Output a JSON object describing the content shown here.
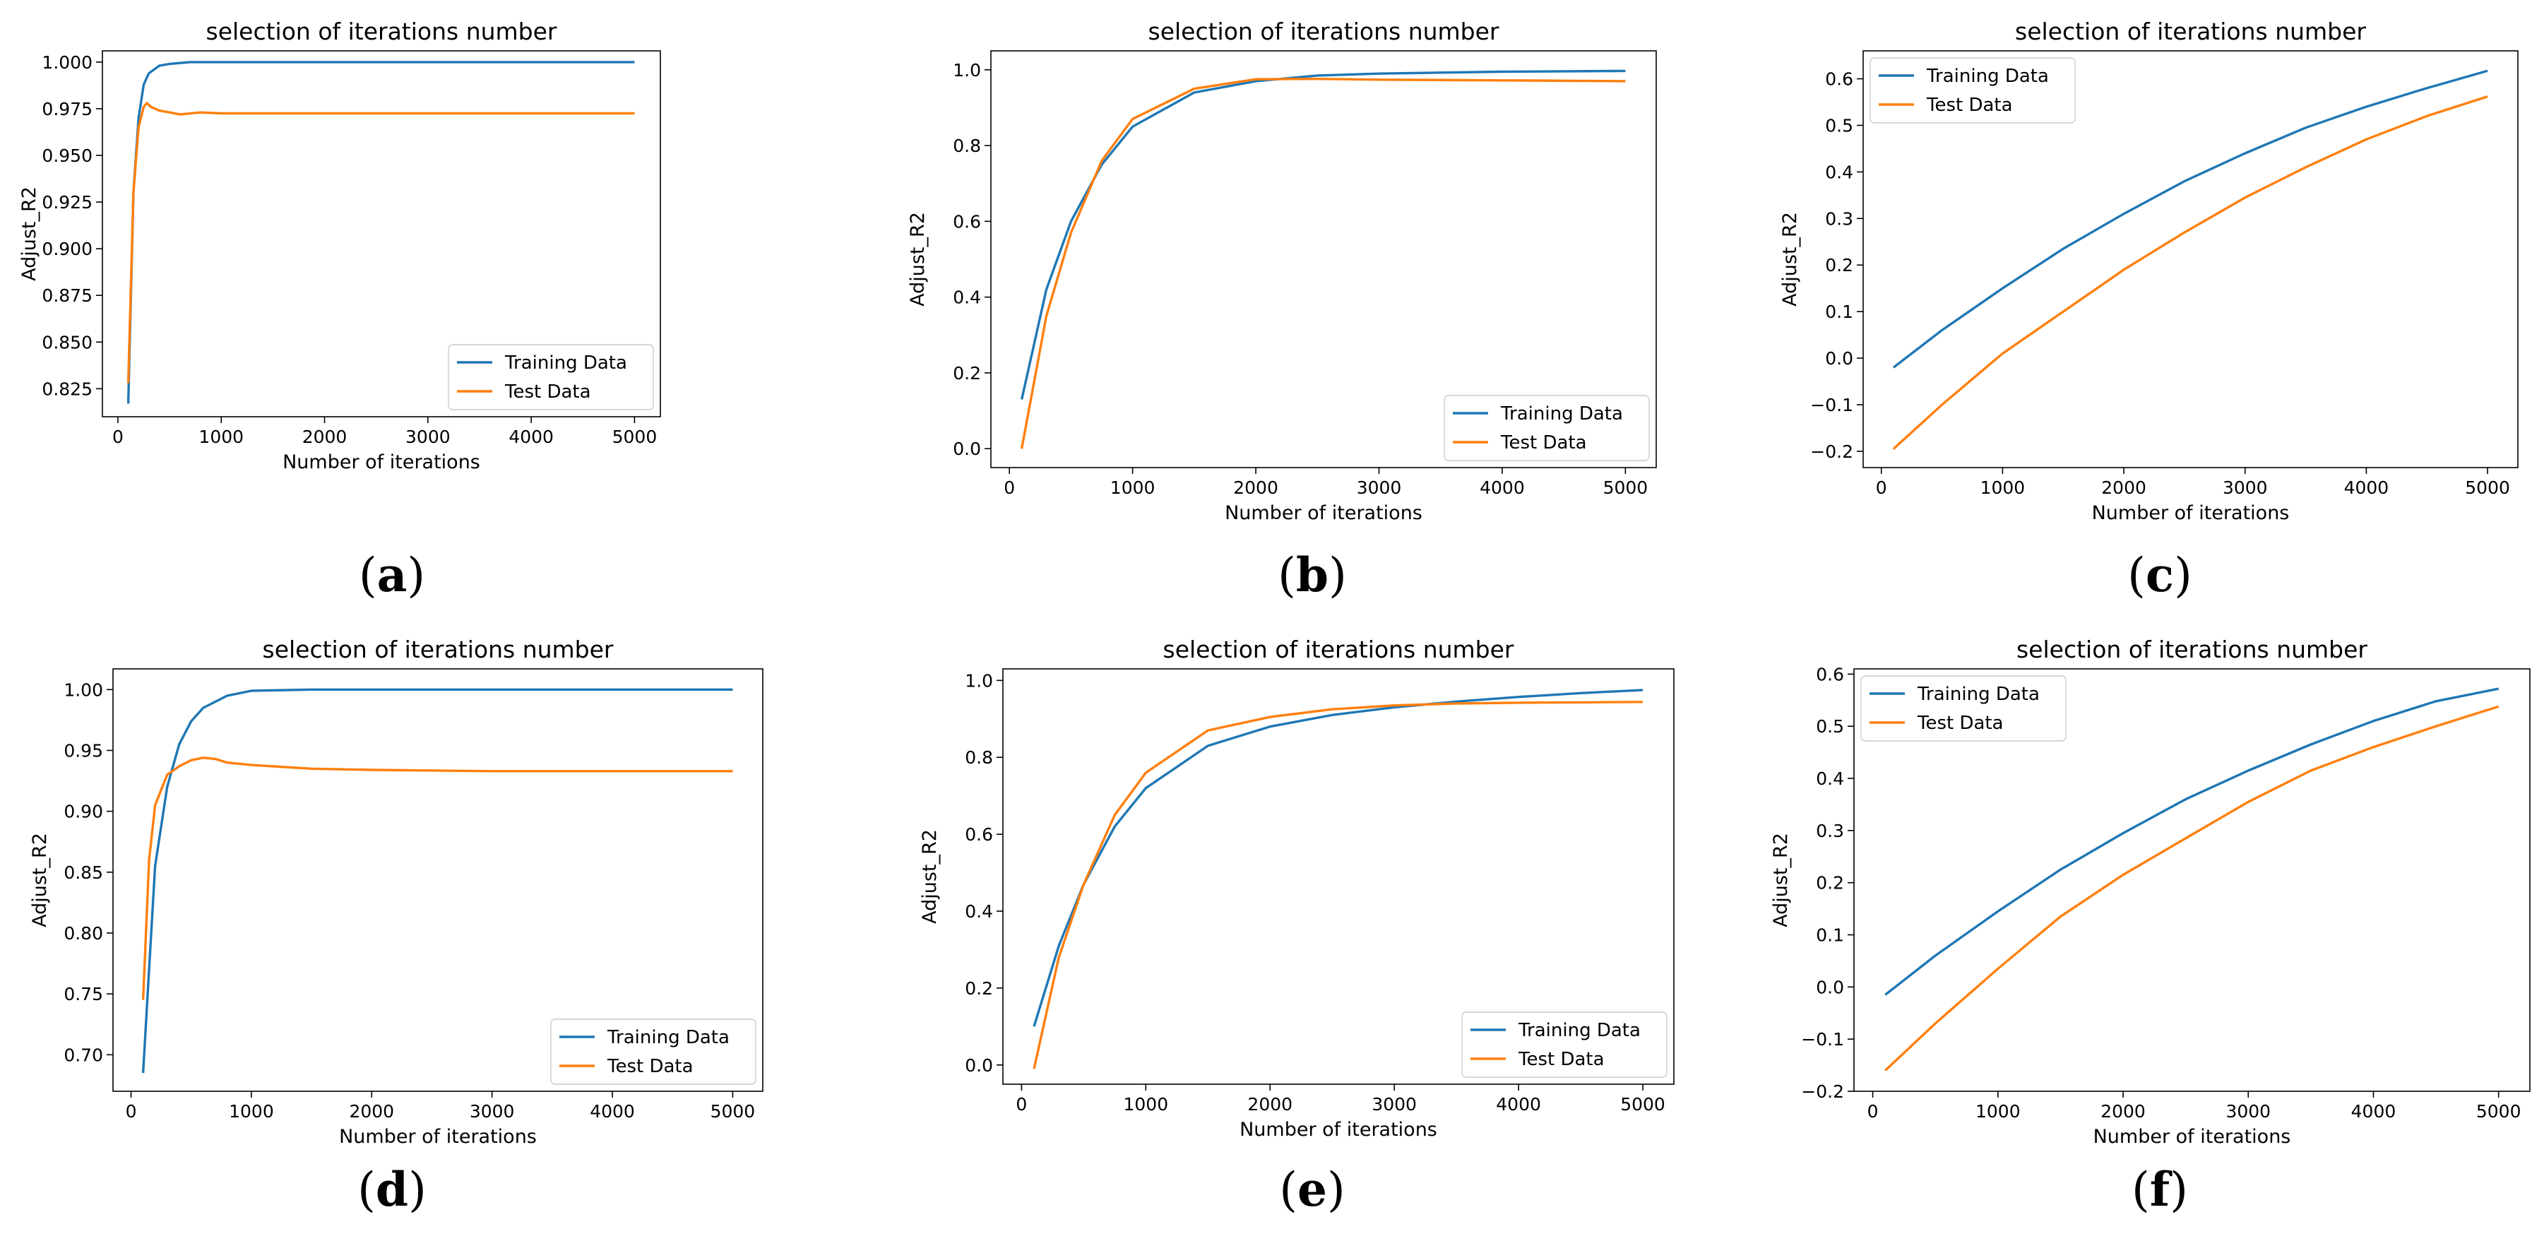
{
  "colors": {
    "training": "#1f77b4",
    "test": "#ff7f0e"
  },
  "chart_data": [
    {
      "panel": "a",
      "caption": {
        "open": "(",
        "letter": "a",
        "close": ")"
      },
      "type": "line",
      "title": "selection of iterations number",
      "xlabel": "Number of iterations",
      "ylabel": "Adjust_R2",
      "xlim": [
        -150,
        5250
      ],
      "ylim": [
        0.81,
        1.006
      ],
      "xticks": [
        0,
        1000,
        2000,
        3000,
        4000,
        5000
      ],
      "xtick_labels": [
        "0",
        "1000",
        "2000",
        "3000",
        "4000",
        "5000"
      ],
      "yticks": [
        0.825,
        0.85,
        0.875,
        0.9,
        0.925,
        0.95,
        0.975,
        1.0
      ],
      "ytick_labels": [
        "0.825",
        "0.850",
        "0.875",
        "0.900",
        "0.925",
        "0.950",
        "0.975",
        "1.000"
      ],
      "legend": "lower right",
      "series": [
        {
          "name": "Training Data",
          "x": [
            100,
            150,
            200,
            250,
            300,
            400,
            500,
            700,
            1000,
            1500,
            2000,
            3000,
            4000,
            5000
          ],
          "values": [
            0.817,
            0.93,
            0.97,
            0.988,
            0.994,
            0.998,
            0.999,
            1.0,
            1.0,
            1.0,
            1.0,
            1.0,
            1.0,
            1.0
          ]
        },
        {
          "name": "Test Data",
          "x": [
            100,
            150,
            200,
            250,
            280,
            320,
            400,
            500,
            600,
            800,
            1000,
            2000,
            3000,
            4000,
            5000
          ],
          "values": [
            0.828,
            0.93,
            0.965,
            0.976,
            0.978,
            0.976,
            0.974,
            0.973,
            0.972,
            0.973,
            0.9725,
            0.9725,
            0.9725,
            0.9725,
            0.9725
          ]
        }
      ]
    },
    {
      "panel": "b",
      "caption": {
        "open": "(",
        "letter": "b",
        "close": ")"
      },
      "type": "line",
      "title": "selection of iterations number",
      "xlabel": "Number of iterations",
      "ylabel": "Adjust_R2",
      "xlim": [
        -150,
        5250
      ],
      "ylim": [
        -0.05,
        1.05
      ],
      "xticks": [
        0,
        1000,
        2000,
        3000,
        4000,
        5000
      ],
      "xtick_labels": [
        "0",
        "1000",
        "2000",
        "3000",
        "4000",
        "5000"
      ],
      "yticks": [
        0.0,
        0.2,
        0.4,
        0.6,
        0.8,
        1.0
      ],
      "ytick_labels": [
        "0.0",
        "0.2",
        "0.4",
        "0.6",
        "0.8",
        "1.0"
      ],
      "legend": "lower right",
      "series": [
        {
          "name": "Training Data",
          "x": [
            100,
            300,
            500,
            750,
            1000,
            1500,
            2000,
            2500,
            3000,
            4000,
            5000
          ],
          "values": [
            0.13,
            0.42,
            0.6,
            0.75,
            0.85,
            0.94,
            0.97,
            0.985,
            0.99,
            0.995,
            0.997
          ]
        },
        {
          "name": "Test Data",
          "x": [
            100,
            300,
            500,
            750,
            1000,
            1500,
            2000,
            2500,
            3000,
            4000,
            5000
          ],
          "values": [
            0.0,
            0.35,
            0.57,
            0.76,
            0.87,
            0.95,
            0.975,
            0.976,
            0.974,
            0.972,
            0.97
          ]
        }
      ]
    },
    {
      "panel": "c",
      "caption": {
        "open": "(",
        "letter": "c",
        "close": ")"
      },
      "type": "line",
      "title": "selection of iterations number",
      "xlabel": "Number of iterations",
      "ylabel": "Adjust_R2",
      "xlim": [
        -150,
        5250
      ],
      "ylim": [
        -0.235,
        0.66
      ],
      "xticks": [
        0,
        1000,
        2000,
        3000,
        4000,
        5000
      ],
      "xtick_labels": [
        "0",
        "1000",
        "2000",
        "3000",
        "4000",
        "5000"
      ],
      "yticks": [
        -0.2,
        -0.1,
        0.0,
        0.1,
        0.2,
        0.3,
        0.4,
        0.5,
        0.6
      ],
      "ytick_labels": [
        "−0.2",
        "−0.1",
        "0.0",
        "0.1",
        "0.2",
        "0.3",
        "0.4",
        "0.5",
        "0.6"
      ],
      "legend": "upper left",
      "series": [
        {
          "name": "Training Data",
          "x": [
            100,
            500,
            1000,
            1500,
            2000,
            2500,
            3000,
            3500,
            4000,
            4500,
            5000
          ],
          "values": [
            -0.02,
            0.06,
            0.15,
            0.235,
            0.31,
            0.38,
            0.44,
            0.495,
            0.54,
            0.58,
            0.617
          ]
        },
        {
          "name": "Test Data",
          "x": [
            100,
            500,
            1000,
            1500,
            2000,
            2500,
            3000,
            3500,
            4000,
            4500,
            5000
          ],
          "values": [
            -0.195,
            -0.1,
            0.01,
            0.1,
            0.19,
            0.27,
            0.345,
            0.41,
            0.47,
            0.52,
            0.562
          ]
        }
      ]
    },
    {
      "panel": "d",
      "caption": {
        "open": "(",
        "letter": "d",
        "close": ")"
      },
      "type": "line",
      "title": "selection of iterations number",
      "xlabel": "Number of iterations",
      "ylabel": "Adjust_R2",
      "xlim": [
        -150,
        5250
      ],
      "ylim": [
        0.67,
        1.017
      ],
      "xticks": [
        0,
        1000,
        2000,
        3000,
        4000,
        5000
      ],
      "xtick_labels": [
        "0",
        "1000",
        "2000",
        "3000",
        "4000",
        "5000"
      ],
      "yticks": [
        0.7,
        0.75,
        0.8,
        0.85,
        0.9,
        0.95,
        1.0
      ],
      "ytick_labels": [
        "0.70",
        "0.75",
        "0.80",
        "0.85",
        "0.90",
        "0.95",
        "1.00"
      ],
      "legend": "lower right",
      "series": [
        {
          "name": "Training Data",
          "x": [
            100,
            200,
            300,
            400,
            500,
            600,
            800,
            1000,
            1500,
            2000,
            3000,
            4000,
            5000
          ],
          "values": [
            0.685,
            0.855,
            0.92,
            0.955,
            0.974,
            0.985,
            0.995,
            0.999,
            1.0,
            1.0,
            1.0,
            1.0,
            1.0
          ]
        },
        {
          "name": "Test Data",
          "x": [
            100,
            150,
            200,
            300,
            400,
            500,
            600,
            700,
            800,
            1000,
            1500,
            2000,
            3000,
            4000,
            5000
          ],
          "values": [
            0.745,
            0.86,
            0.905,
            0.93,
            0.937,
            0.942,
            0.944,
            0.943,
            0.94,
            0.938,
            0.935,
            0.934,
            0.933,
            0.933,
            0.933
          ]
        }
      ]
    },
    {
      "panel": "e",
      "caption": {
        "open": "(",
        "letter": "e",
        "close": ")"
      },
      "type": "line",
      "title": "selection of iterations number",
      "xlabel": "Number of iterations",
      "ylabel": "Adjust_R2",
      "xlim": [
        -150,
        5250
      ],
      "ylim": [
        -0.05,
        1.03
      ],
      "xticks": [
        0,
        1000,
        2000,
        3000,
        4000,
        5000
      ],
      "xtick_labels": [
        "0",
        "1000",
        "2000",
        "3000",
        "4000",
        "5000"
      ],
      "yticks": [
        0.0,
        0.2,
        0.4,
        0.6,
        0.8,
        1.0
      ],
      "ytick_labels": [
        "0.0",
        "0.2",
        "0.4",
        "0.6",
        "0.8",
        "1.0"
      ],
      "legend": "lower right",
      "series": [
        {
          "name": "Training Data",
          "x": [
            100,
            300,
            500,
            750,
            1000,
            1500,
            2000,
            2500,
            3000,
            3500,
            4000,
            4500,
            5000
          ],
          "values": [
            0.1,
            0.31,
            0.47,
            0.62,
            0.72,
            0.83,
            0.88,
            0.91,
            0.93,
            0.945,
            0.957,
            0.967,
            0.975
          ]
        },
        {
          "name": "Test Data",
          "x": [
            100,
            300,
            500,
            750,
            1000,
            1500,
            2000,
            2500,
            3000,
            3500,
            4000,
            4500,
            5000
          ],
          "values": [
            -0.01,
            0.28,
            0.47,
            0.65,
            0.76,
            0.87,
            0.905,
            0.925,
            0.935,
            0.94,
            0.942,
            0.943,
            0.944
          ]
        }
      ]
    },
    {
      "panel": "f",
      "caption": {
        "open": "(",
        "letter": "f",
        "close": ")"
      },
      "type": "line",
      "title": "selection of iterations number",
      "xlabel": "Number of iterations",
      "ylabel": "Adjust_R2",
      "xlim": [
        -150,
        5250
      ],
      "ylim": [
        -0.2,
        0.61
      ],
      "xticks": [
        0,
        1000,
        2000,
        3000,
        4000,
        5000
      ],
      "xtick_labels": [
        "0",
        "1000",
        "2000",
        "3000",
        "4000",
        "5000"
      ],
      "yticks": [
        -0.2,
        -0.1,
        0.0,
        0.1,
        0.2,
        0.3,
        0.4,
        0.5,
        0.6
      ],
      "ytick_labels": [
        "−0.2",
        "−0.1",
        "0.0",
        "0.1",
        "0.2",
        "0.3",
        "0.4",
        "0.5",
        "0.6"
      ],
      "legend": "upper left",
      "series": [
        {
          "name": "Training Data",
          "x": [
            100,
            500,
            1000,
            1500,
            2000,
            2500,
            3000,
            3500,
            4000,
            4500,
            5000
          ],
          "values": [
            -0.015,
            0.06,
            0.145,
            0.225,
            0.295,
            0.36,
            0.415,
            0.465,
            0.51,
            0.548,
            0.572
          ]
        },
        {
          "name": "Test Data",
          "x": [
            100,
            500,
            1000,
            1500,
            2000,
            2500,
            3000,
            3500,
            4000,
            4500,
            5000
          ],
          "values": [
            -0.16,
            -0.07,
            0.035,
            0.135,
            0.215,
            0.285,
            0.355,
            0.415,
            0.46,
            0.5,
            0.538
          ]
        }
      ]
    }
  ]
}
